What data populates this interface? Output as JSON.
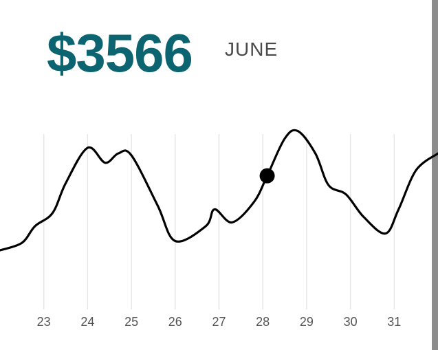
{
  "header": {
    "amount": "$3566",
    "month": "JUNE"
  },
  "colors": {
    "amount": "#0b6470",
    "line": "#000000",
    "grid": "#e6e6e6"
  },
  "chart_data": {
    "type": "line",
    "x": [
      22.0,
      22.5,
      22.8,
      23.2,
      23.5,
      24.0,
      24.4,
      24.7,
      25.0,
      25.6,
      26.0,
      26.7,
      26.9,
      27.3,
      27.8,
      28.1,
      28.5,
      28.8,
      29.2,
      29.5,
      29.9,
      30.3,
      30.8,
      31.1,
      31.5,
      32.0
    ],
    "y": [
      0.6,
      1.0,
      1.9,
      2.6,
      4.2,
      6.1,
      5.3,
      5.8,
      5.7,
      3.0,
      1.1,
      1.9,
      2.8,
      2.1,
      3.2,
      4.6,
      6.6,
      7.0,
      5.8,
      4.1,
      3.6,
      2.4,
      1.5,
      2.8,
      4.9,
      5.8
    ],
    "categories": [
      "23",
      "24",
      "25",
      "26",
      "27",
      "28",
      "29",
      "30",
      "31"
    ],
    "xlim": [
      22.0,
      32.0
    ],
    "ylim": [
      -2.5,
      8.5
    ],
    "highlight": {
      "x": 28.1,
      "y": 4.6
    },
    "grid": "vertical"
  }
}
